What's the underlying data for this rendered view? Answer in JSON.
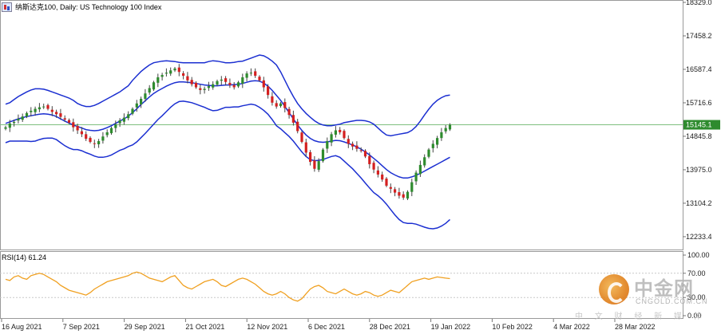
{
  "window": {
    "title": "纳斯达克100, Daily:  US Technology 100 Index",
    "rsi_label": "RSI(14) 61.24"
  },
  "price_axis": {
    "labels": [
      "18329.0",
      "17458.2",
      "16587.4",
      "15716.6",
      "14845.8",
      "13975.0",
      "13104.2",
      "12233.4"
    ],
    "current_price": "15145.1"
  },
  "rsi_axis": {
    "labels": [
      "100.00",
      "70.00",
      "30.00",
      "0.00"
    ]
  },
  "time_axis": {
    "labels": [
      "16 Aug 2021",
      "7 Sep 2021",
      "29 Sep 2021",
      "21 Oct 2021",
      "12 Nov 2021",
      "6 Dec 2021",
      "28 Dec 2021",
      "19 Jan 2022",
      "10 Feb 2022",
      "4 Mar 2022",
      "28 Mar 2022"
    ]
  },
  "watermark": {
    "brand": "中金网",
    "domain": "CNGOLD.COM.CN",
    "tagline": "中 文 财 经 新 媒 体"
  },
  "colors": {
    "bull_candle": "#2e8b2e",
    "bear_candle": "#d42020",
    "bollinger_bands": "#1b2fd1",
    "rsi_line": "#f0a020",
    "price_line": "#7fbf7f",
    "price_tag_bg": "#2e8b2e",
    "grid": "#c8c8c8"
  },
  "chart_data": [
    {
      "type": "candlestick",
      "title": "纳斯达克100, Daily:  US Technology 100 Index",
      "x_range": [
        "16 Aug 2021",
        "4 Apr 2022"
      ],
      "ylim": [
        11900,
        18329
      ],
      "y_ticks": [
        18329.0,
        17458.2,
        16587.4,
        15716.6,
        14845.8,
        13975.0,
        13104.2,
        12233.4
      ],
      "last_price": 15145.1,
      "series": [
        {
          "name": "close",
          "values": [
            15080,
            15180,
            15220,
            15300,
            15360,
            15450,
            15510,
            15560,
            15600,
            15620,
            15560,
            15480,
            15420,
            15350,
            15280,
            15200,
            15080,
            15000,
            14900,
            14780,
            14700,
            14650,
            14720,
            14840,
            14950,
            15060,
            15160,
            15260,
            15330,
            15420,
            15560,
            15700,
            15820,
            15960,
            16100,
            16250,
            16380,
            16440,
            16500,
            16560,
            16610,
            16520,
            16420,
            16300,
            16200,
            16120,
            16050,
            16080,
            16150,
            16200,
            16280,
            16320,
            16260,
            16180,
            16120,
            16250,
            16380,
            16480,
            16500,
            16420,
            16300,
            16120,
            15920,
            15720,
            15620,
            15700,
            15580,
            15400,
            15200,
            14980,
            14700,
            14420,
            14180,
            14000,
            14200,
            14500,
            14720,
            14900,
            15000,
            14950,
            14800,
            14650,
            14580,
            14520,
            14480,
            14320,
            14120,
            13980,
            13850,
            13720,
            13560,
            13480,
            13380,
            13300,
            13250,
            13400,
            13650,
            13900,
            14100,
            14300,
            14500,
            14650,
            14800,
            14950,
            15060,
            15145
          ]
        },
        {
          "name": "upper",
          "values": [
            15680,
            15720,
            15800,
            15880,
            15940,
            16000,
            16050,
            16080,
            16080,
            16070,
            16040,
            16000,
            15960,
            15920,
            15880,
            15840,
            15780,
            15700,
            15650,
            15620,
            15620,
            15650,
            15700,
            15760,
            15820,
            15880,
            15940,
            16000,
            16080,
            16160,
            16300,
            16420,
            16530,
            16620,
            16700,
            16760,
            16780,
            16800,
            16810,
            16800,
            16790,
            16770,
            16760,
            16760,
            16760,
            16760,
            16760,
            16760,
            16790,
            16810,
            16800,
            16780,
            16760,
            16760,
            16770,
            16790,
            16800,
            16840,
            16880,
            16920,
            16960,
            16940,
            16880,
            16800,
            16700,
            16520,
            16300,
            16080,
            15880,
            15700,
            15560,
            15440,
            15340,
            15250,
            15180,
            15140,
            15120,
            15120,
            15140,
            15160,
            15200,
            15220,
            15240,
            15260,
            15260,
            15250,
            15220,
            15160,
            15060,
            14960,
            14880,
            14860,
            14880,
            14900,
            14920,
            14940,
            15000,
            15100,
            15240,
            15400,
            15550,
            15680,
            15780,
            15850,
            15900,
            15920
          ]
        },
        {
          "name": "middle",
          "values": [
            15180,
            15220,
            15260,
            15300,
            15330,
            15360,
            15380,
            15400,
            15420,
            15430,
            15420,
            15400,
            15360,
            15300,
            15240,
            15190,
            15140,
            15100,
            15060,
            15020,
            15000,
            14990,
            15000,
            15030,
            15070,
            15120,
            15180,
            15240,
            15300,
            15370,
            15460,
            15560,
            15670,
            15770,
            15870,
            15960,
            16030,
            16090,
            16150,
            16200,
            16240,
            16260,
            16260,
            16250,
            16240,
            16220,
            16200,
            16180,
            16170,
            16160,
            16160,
            16170,
            16180,
            16180,
            16190,
            16200,
            16220,
            16250,
            16280,
            16290,
            16280,
            16230,
            16150,
            16040,
            15910,
            15780,
            15620,
            15460,
            15300,
            15140,
            15000,
            14880,
            14790,
            14730,
            14700,
            14690,
            14700,
            14720,
            14740,
            14730,
            14700,
            14660,
            14620,
            14570,
            14510,
            14440,
            14360,
            14270,
            14180,
            14080,
            13980,
            13900,
            13840,
            13790,
            13760,
            13760,
            13790,
            13830,
            13880,
            13940,
            14000,
            14060,
            14120,
            14180,
            14240,
            14300
          ]
        },
        {
          "name": "lower",
          "values": [
            14680,
            14720,
            14720,
            14720,
            14720,
            14720,
            14710,
            14720,
            14760,
            14790,
            14800,
            14800,
            14760,
            14680,
            14600,
            14540,
            14500,
            14500,
            14470,
            14420,
            14380,
            14330,
            14300,
            14300,
            14320,
            14360,
            14420,
            14480,
            14520,
            14580,
            14620,
            14700,
            14810,
            14920,
            15040,
            15160,
            15280,
            15380,
            15490,
            15600,
            15690,
            15750,
            15760,
            15740,
            15720,
            15680,
            15640,
            15600,
            15550,
            15510,
            15520,
            15560,
            15600,
            15600,
            15610,
            15610,
            15640,
            15660,
            15680,
            15660,
            15600,
            15520,
            15420,
            15280,
            15120,
            15040,
            14940,
            14840,
            14720,
            14580,
            14440,
            14320,
            14240,
            14210,
            14220,
            14240,
            14280,
            14320,
            14340,
            14300,
            14200,
            14100,
            14000,
            13880,
            13760,
            13630,
            13500,
            13380,
            13300,
            13200,
            13080,
            12940,
            12800,
            12680,
            12600,
            12580,
            12580,
            12560,
            12520,
            12480,
            12450,
            12440,
            12460,
            12510,
            12580,
            12680
          ]
        }
      ]
    },
    {
      "type": "line",
      "title": "RSI(14) 61.24",
      "ylim": [
        0,
        100
      ],
      "y_ticks": [
        100.0,
        70.0,
        30.0,
        0.0
      ],
      "last_value": 61.24,
      "series": [
        {
          "name": "RSI(14)",
          "values": [
            60,
            58,
            64,
            66,
            62,
            60,
            66,
            68,
            70,
            68,
            64,
            60,
            56,
            50,
            46,
            42,
            40,
            38,
            36,
            34,
            38,
            44,
            48,
            52,
            56,
            58,
            60,
            62,
            64,
            66,
            70,
            72,
            70,
            66,
            62,
            60,
            58,
            56,
            60,
            64,
            66,
            58,
            50,
            46,
            44,
            48,
            52,
            56,
            58,
            60,
            56,
            50,
            48,
            52,
            56,
            60,
            62,
            60,
            56,
            52,
            46,
            40,
            36,
            34,
            36,
            40,
            36,
            30,
            26,
            24,
            28,
            36,
            44,
            48,
            50,
            46,
            40,
            38,
            36,
            40,
            44,
            40,
            36,
            34,
            36,
            40,
            38,
            34,
            32,
            34,
            38,
            42,
            40,
            38,
            44,
            50,
            56,
            58,
            60,
            62,
            60,
            62,
            64,
            63,
            62,
            61.24
          ]
        }
      ]
    }
  ]
}
